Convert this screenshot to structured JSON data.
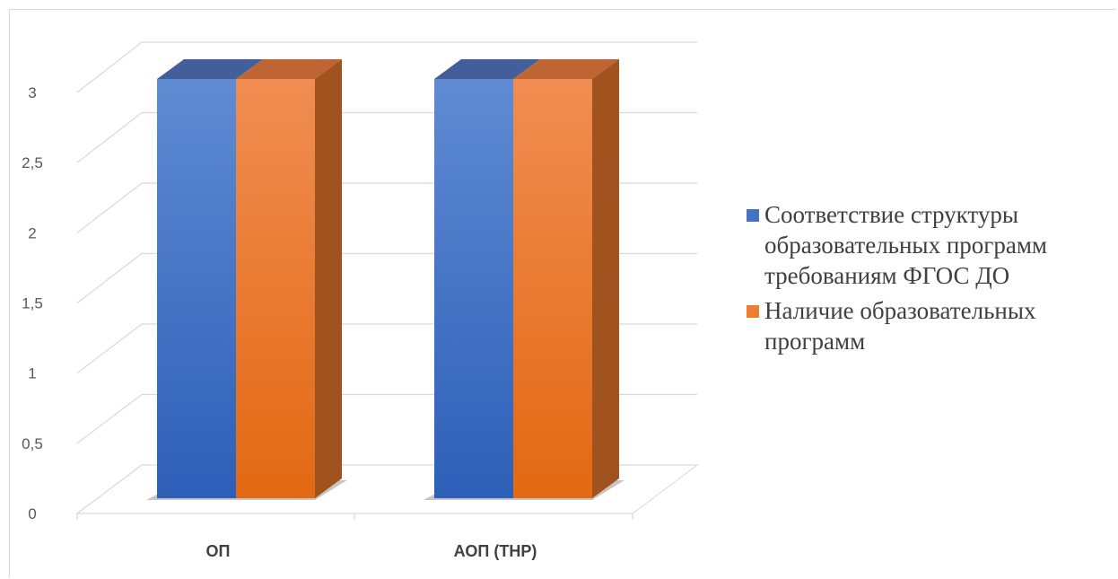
{
  "chart_data": {
    "type": "bar",
    "categories": [
      "ОП",
      "АОП (ТНР)"
    ],
    "series": [
      {
        "name": "Соответствие структуры образовательных программ требованиям ФГОС ДО",
        "values": [
          3,
          3
        ],
        "color": "#4472c4"
      },
      {
        "name": "Наличие образовательных программ",
        "values": [
          3,
          3
        ],
        "color": "#ed7d31"
      }
    ],
    "y_ticks": [
      "0",
      "0,5",
      "1",
      "1,5",
      "2",
      "2,5",
      "3"
    ],
    "ylim": [
      0,
      3
    ],
    "grid": true,
    "legend_position": "right",
    "style": "3d-clustered-column"
  }
}
